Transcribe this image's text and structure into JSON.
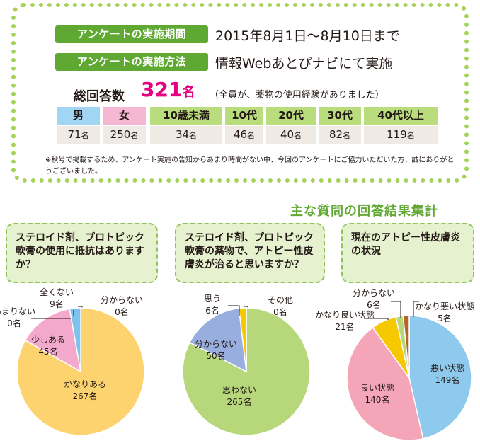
{
  "survey": {
    "period_label": "アンケートの実施期間",
    "period_value": "2015年8月1日～8月10日まで",
    "method_label": "アンケートの実施方法",
    "method_value": "情報Webあとぴナビにて実施",
    "total_label": "総回答数",
    "total_count": "321",
    "total_unit": "名",
    "total_note": "（全員が、薬物の使用経験がありました）",
    "demographics": [
      {
        "label": "男",
        "value": "71",
        "unit": "名",
        "color": "#a0d6f4"
      },
      {
        "label": "女",
        "value": "250",
        "unit": "名",
        "color": "#f6b7d2"
      },
      {
        "label": "10歳未満",
        "value": "34",
        "unit": "名",
        "color": "#b9dc7c"
      },
      {
        "label": "10代",
        "value": "46",
        "unit": "名",
        "color": "#b9dc7c"
      },
      {
        "label": "20代",
        "value": "40",
        "unit": "名",
        "color": "#b9dc7c"
      },
      {
        "label": "30代",
        "value": "82",
        "unit": "名",
        "color": "#b9dc7c"
      },
      {
        "label": "40代以上",
        "value": "119",
        "unit": "名",
        "color": "#b9dc7c"
      }
    ],
    "footnote": "※秋号で掲載するため、アンケート実施の告知からあまり時間がない中、今回のアンケートにご協力いただいた方、誠にありがとうございました。"
  },
  "section_title": "主な質問の回答結果集計",
  "chart_data": [
    {
      "type": "pie",
      "title": "ステロイド剤、プロトピック軟膏の使用に抵抗はありますか？",
      "unit": "名",
      "slices": [
        {
          "label": "分からない",
          "value": 0,
          "color": "#8fc7a8"
        },
        {
          "label": "かなりある",
          "value": 267,
          "color": "#fcd36e"
        },
        {
          "label": "少しある",
          "value": 45,
          "color": "#f3a9cc"
        },
        {
          "label": "あまりない",
          "value": 0,
          "color": "#c9e4a3"
        },
        {
          "label": "全くない",
          "value": 9,
          "color": "#7fc3ec"
        }
      ]
    },
    {
      "type": "pie",
      "title": "ステロイド剤、プロトピック軟膏の薬物で、アトピー性皮膚炎が治ると思いますか？",
      "unit": "名",
      "slices": [
        {
          "label": "その他",
          "value": 0,
          "color": "#c9e4a3"
        },
        {
          "label": "思わない",
          "value": 265,
          "color": "#b6d77a"
        },
        {
          "label": "分からない",
          "value": 50,
          "color": "#98aede"
        },
        {
          "label": "思う",
          "value": 6,
          "color": "#f6c800"
        }
      ]
    },
    {
      "type": "pie",
      "title": "現在のアトピー性皮膚炎の状況",
      "unit": "名",
      "slices": [
        {
          "label": "悪い状態",
          "value": 149,
          "color": "#8ec9ee"
        },
        {
          "label": "良い状態",
          "value": 140,
          "color": "#f4a6b8"
        },
        {
          "label": "かなり良い状態",
          "value": 21,
          "color": "#f6c800"
        },
        {
          "label": "分からない",
          "value": 6,
          "color": "#b6d77a"
        },
        {
          "label": "かなり悪い状態",
          "value": 5,
          "color": "#b5652a"
        }
      ]
    }
  ]
}
